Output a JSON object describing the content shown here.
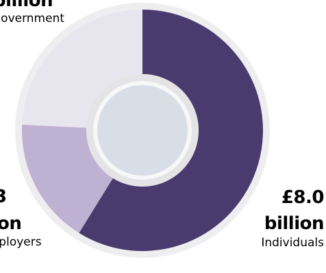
{
  "chart_data": {
    "type": "pie",
    "categories": [
      "Individuals",
      "Employers",
      "Government"
    ],
    "values": [
      8.0,
      2.3,
      3.3
    ],
    "amount_labels": [
      "£8.0",
      "billion",
      "3",
      "on",
      "billion"
    ],
    "colors": [
      "#4a3b6e",
      "#beb1d1",
      "#e7e5ee"
    ],
    "center_color": "#d9dde5",
    "ring_color": "#e4e4e6",
    "legend": "none",
    "grid": false
  }
}
